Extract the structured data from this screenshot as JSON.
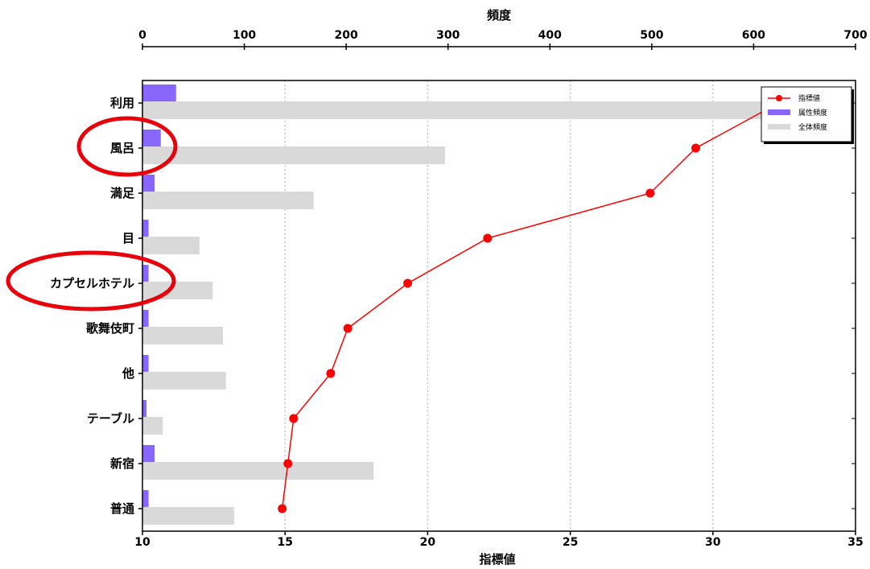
{
  "chart_data": {
    "type": "bar",
    "orientation": "horizontal",
    "categories": [
      "利用",
      "風呂",
      "満足",
      "目",
      "カプセルホテル",
      "歌舞伎町",
      "他",
      "テーブル",
      "新宿",
      "普通"
    ],
    "circled_categories": [
      "風呂",
      "カプセルホテル"
    ],
    "top_axis": {
      "label": "頻度",
      "range": [
        0,
        700
      ],
      "ticks": [
        0,
        100,
        200,
        300,
        400,
        500,
        600,
        700
      ]
    },
    "bottom_axis": {
      "label": "指標値",
      "range": [
        10,
        35
      ],
      "ticks": [
        10,
        15,
        20,
        25,
        30,
        35
      ]
    },
    "series": [
      {
        "name": "指標値",
        "type": "line",
        "axis": "bottom",
        "color": "#ff0000",
        "values": [
          32.3,
          29.4,
          27.8,
          22.1,
          19.3,
          17.2,
          16.6,
          15.3,
          15.1,
          14.9
        ]
      },
      {
        "name": "属性頻度",
        "type": "bar",
        "axis": "top",
        "color": "#8866ff",
        "values": [
          33,
          18,
          12,
          6,
          6,
          6,
          6,
          4,
          12,
          6
        ]
      },
      {
        "name": "全体頻度",
        "type": "bar",
        "axis": "top",
        "color": "#d9d9d9",
        "values": [
          620,
          297,
          168,
          56,
          69,
          79,
          82,
          20,
          227,
          90
        ]
      }
    ],
    "grid": "vertical-dotted",
    "legend_position": "top-right"
  }
}
